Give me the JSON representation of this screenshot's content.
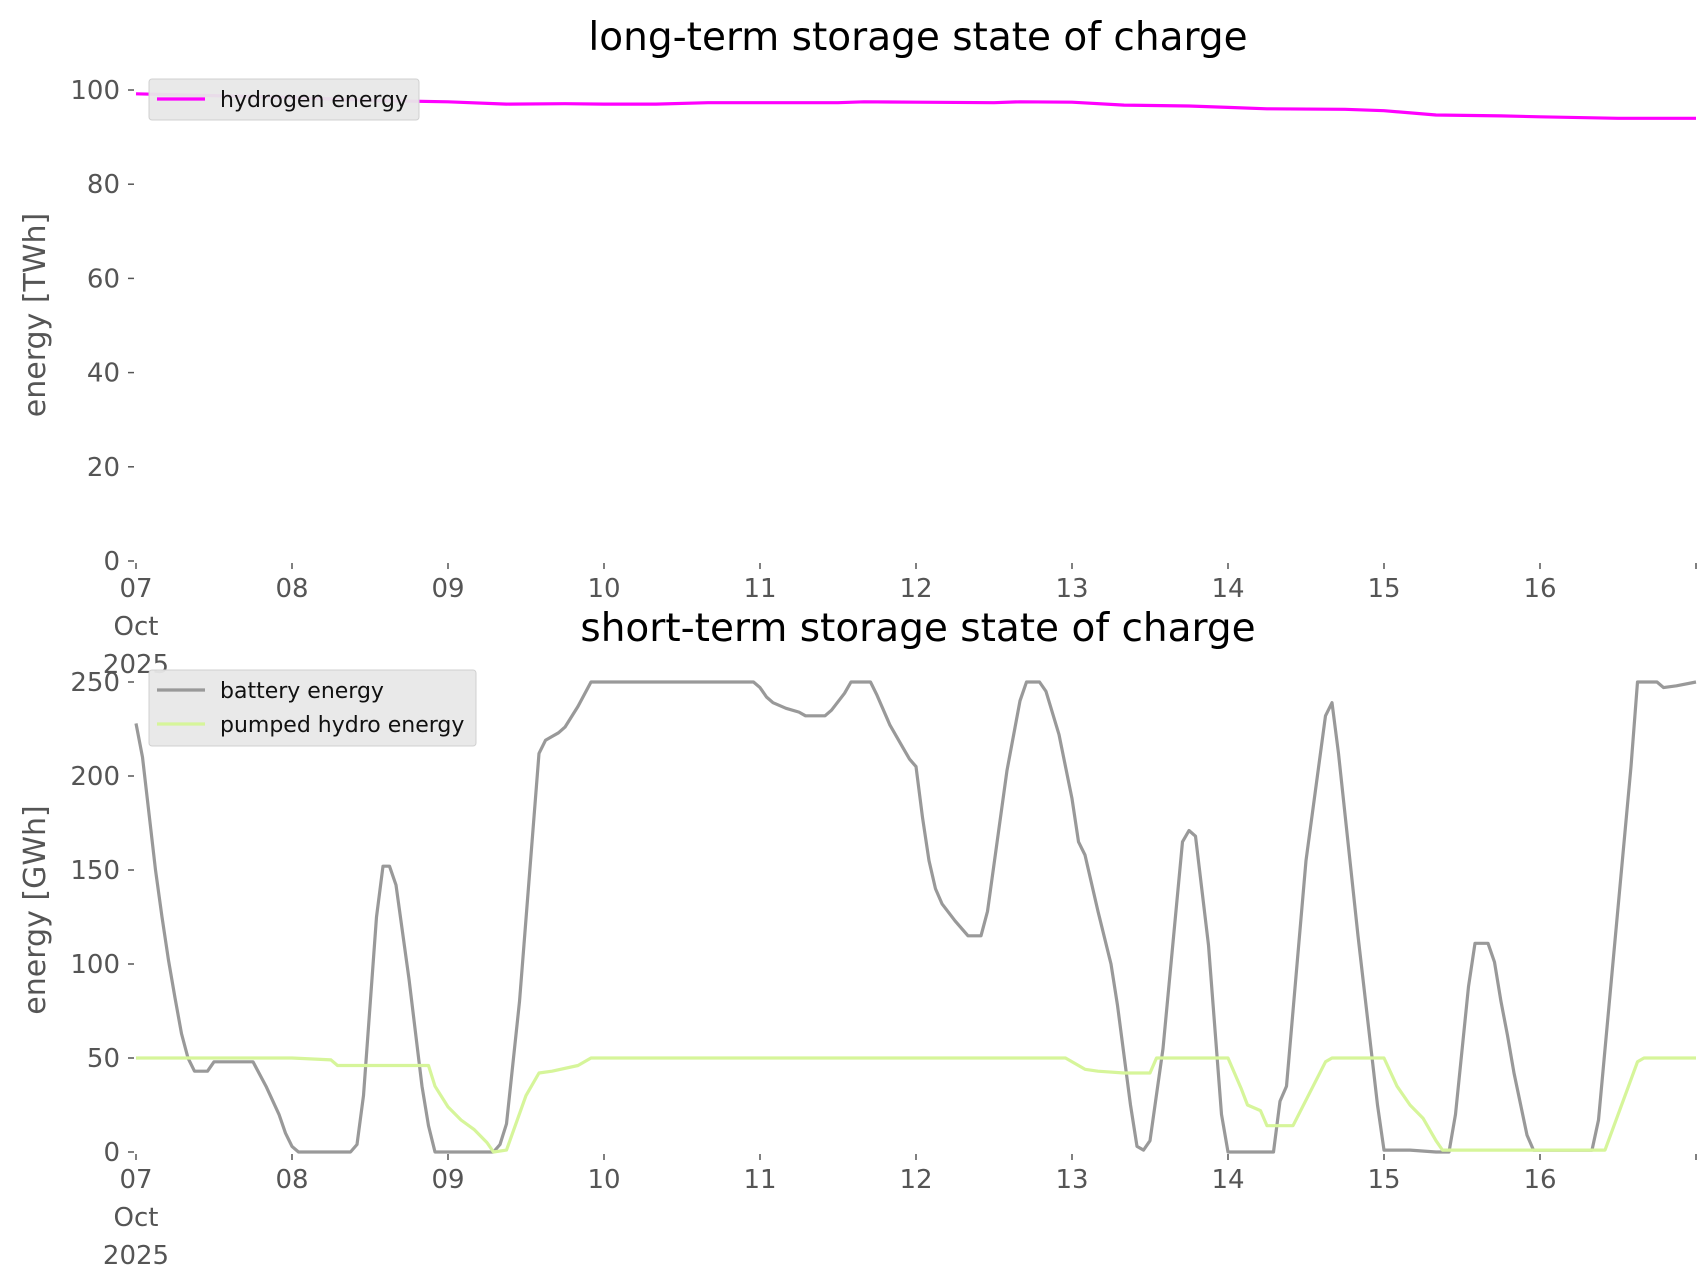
{
  "chart_data": [
    {
      "type": "line",
      "title": "long-term storage state of charge",
      "xlabel": "",
      "ylabel": "energy [TWh]",
      "ylim": [
        0,
        100
      ],
      "yticks": [
        "0",
        "20",
        "40",
        "60",
        "80",
        "100"
      ],
      "xticks": [
        {
          "date": "2025-10-07",
          "label": [
            "07",
            "Oct",
            "2025"
          ]
        },
        {
          "date": "2025-10-08",
          "label": [
            "08"
          ]
        },
        {
          "date": "2025-10-09",
          "label": [
            "09"
          ]
        },
        {
          "date": "2025-10-10",
          "label": [
            "10"
          ]
        },
        {
          "date": "2025-10-11",
          "label": [
            "11"
          ]
        },
        {
          "date": "2025-10-12",
          "label": [
            "12"
          ]
        },
        {
          "date": "2025-10-13",
          "label": [
            "13"
          ]
        },
        {
          "date": "2025-10-14",
          "label": [
            "14"
          ]
        },
        {
          "date": "2025-10-15",
          "label": [
            "15"
          ]
        },
        {
          "date": "2025-10-16",
          "label": [
            "16"
          ]
        }
      ],
      "xlim": [
        "2025-10-07T00:00",
        "2025-10-17T00:00"
      ],
      "grid": false,
      "legend_loc": "upper left",
      "series": [
        {
          "name": "hydrogen energy",
          "color": "#ff00ff",
          "points": [
            [
              "2025-10-07T00:00",
              99.2
            ],
            [
              "2025-10-08T00:00",
              98.4
            ],
            [
              "2025-10-08T12:00",
              97.8
            ],
            [
              "2025-10-09T00:00",
              97.5
            ],
            [
              "2025-10-09T09:00",
              97.0
            ],
            [
              "2025-10-09T18:00",
              97.1
            ],
            [
              "2025-10-10T00:00",
              97.0
            ],
            [
              "2025-10-10T08:00",
              97.0
            ],
            [
              "2025-10-10T16:00",
              97.3
            ],
            [
              "2025-10-11T00:00",
              97.3
            ],
            [
              "2025-10-11T12:00",
              97.3
            ],
            [
              "2025-10-11T16:00",
              97.5
            ],
            [
              "2025-10-12T00:00",
              97.4
            ],
            [
              "2025-10-12T12:00",
              97.3
            ],
            [
              "2025-10-12T16:00",
              97.5
            ],
            [
              "2025-10-13T00:00",
              97.4
            ],
            [
              "2025-10-13T08:00",
              96.8
            ],
            [
              "2025-10-13T18:00",
              96.6
            ],
            [
              "2025-10-14T00:00",
              96.3
            ],
            [
              "2025-10-14T06:00",
              96.0
            ],
            [
              "2025-10-14T18:00",
              95.9
            ],
            [
              "2025-10-15T00:00",
              95.6
            ],
            [
              "2025-10-15T08:00",
              94.7
            ],
            [
              "2025-10-15T18:00",
              94.5
            ],
            [
              "2025-10-16T00:00",
              94.3
            ],
            [
              "2025-10-16T12:00",
              94.0
            ],
            [
              "2025-10-17T00:00",
              94.0
            ]
          ]
        }
      ]
    },
    {
      "type": "line",
      "title": "short-term storage state of charge",
      "xlabel": "",
      "ylabel": "energy [GWh]",
      "ylim": [
        0,
        250
      ],
      "yticks": [
        "0",
        "50",
        "100",
        "150",
        "200",
        "250"
      ],
      "xticks": [
        {
          "date": "2025-10-07",
          "label": [
            "07",
            "Oct",
            "2025"
          ]
        },
        {
          "date": "2025-10-08",
          "label": [
            "08"
          ]
        },
        {
          "date": "2025-10-09",
          "label": [
            "09"
          ]
        },
        {
          "date": "2025-10-10",
          "label": [
            "10"
          ]
        },
        {
          "date": "2025-10-11",
          "label": [
            "11"
          ]
        },
        {
          "date": "2025-10-12",
          "label": [
            "12"
          ]
        },
        {
          "date": "2025-10-13",
          "label": [
            "13"
          ]
        },
        {
          "date": "2025-10-14",
          "label": [
            "14"
          ]
        },
        {
          "date": "2025-10-15",
          "label": [
            "15"
          ]
        },
        {
          "date": "2025-10-16",
          "label": [
            "16"
          ]
        }
      ],
      "xlim": [
        "2025-10-07T00:00",
        "2025-10-17T00:00"
      ],
      "grid": false,
      "legend_loc": "upper left",
      "series": [
        {
          "name": "battery energy",
          "color": "#999999",
          "points": [
            [
              "2025-10-07T00:00",
              228
            ],
            [
              "2025-10-07T01:00",
              210
            ],
            [
              "2025-10-07T02:00",
              180
            ],
            [
              "2025-10-07T03:00",
              150
            ],
            [
              "2025-10-07T04:00",
              125
            ],
            [
              "2025-10-07T05:00",
              102
            ],
            [
              "2025-10-07T06:00",
              82
            ],
            [
              "2025-10-07T07:00",
              63
            ],
            [
              "2025-10-07T08:00",
              50
            ],
            [
              "2025-10-07T09:00",
              43
            ],
            [
              "2025-10-07T11:00",
              43
            ],
            [
              "2025-10-07T12:00",
              48
            ],
            [
              "2025-10-07T18:00",
              48
            ],
            [
              "2025-10-07T20:00",
              35
            ],
            [
              "2025-10-07T22:00",
              20
            ],
            [
              "2025-10-07T23:00",
              10
            ],
            [
              "2025-10-08T00:00",
              3
            ],
            [
              "2025-10-08T01:00",
              0
            ],
            [
              "2025-10-08T09:00",
              0
            ],
            [
              "2025-10-08T10:00",
              4
            ],
            [
              "2025-10-08T11:00",
              30
            ],
            [
              "2025-10-08T13:00",
              125
            ],
            [
              "2025-10-08T14:00",
              152
            ],
            [
              "2025-10-08T15:00",
              152
            ],
            [
              "2025-10-08T16:00",
              142
            ],
            [
              "2025-10-08T18:00",
              92
            ],
            [
              "2025-10-08T20:00",
              35
            ],
            [
              "2025-10-08T21:00",
              14
            ],
            [
              "2025-10-08T22:00",
              0
            ],
            [
              "2025-10-09T07:00",
              0
            ],
            [
              "2025-10-09T08:00",
              4
            ],
            [
              "2025-10-09T09:00",
              15
            ],
            [
              "2025-10-09T11:00",
              80
            ],
            [
              "2025-10-09T14:00",
              212
            ],
            [
              "2025-10-09T15:00",
              219
            ],
            [
              "2025-10-09T16:00",
              221
            ],
            [
              "2025-10-09T17:00",
              223
            ],
            [
              "2025-10-09T18:00",
              226
            ],
            [
              "2025-10-09T20:00",
              237
            ],
            [
              "2025-10-09T22:00",
              250
            ],
            [
              "2025-10-10T23:00",
              250
            ],
            [
              "2025-10-11T00:00",
              247
            ],
            [
              "2025-10-11T01:00",
              242
            ],
            [
              "2025-10-11T02:00",
              239
            ],
            [
              "2025-10-11T04:00",
              236
            ],
            [
              "2025-10-11T06:00",
              234
            ],
            [
              "2025-10-11T07:00",
              232
            ],
            [
              "2025-10-11T10:00",
              232
            ],
            [
              "2025-10-11T11:00",
              235
            ],
            [
              "2025-10-11T13:00",
              244
            ],
            [
              "2025-10-11T14:00",
              250
            ],
            [
              "2025-10-11T17:00",
              250
            ],
            [
              "2025-10-11T18:00",
              243
            ],
            [
              "2025-10-11T20:00",
              227
            ],
            [
              "2025-10-11T22:00",
              215
            ],
            [
              "2025-10-11T23:00",
              209
            ],
            [
              "2025-10-12T00:00",
              205
            ],
            [
              "2025-10-12T01:00",
              178
            ],
            [
              "2025-10-12T02:00",
              155
            ],
            [
              "2025-10-12T03:00",
              140
            ],
            [
              "2025-10-12T04:00",
              132
            ],
            [
              "2025-10-12T06:00",
              123
            ],
            [
              "2025-10-12T08:00",
              115
            ],
            [
              "2025-10-12T10:00",
              115
            ],
            [
              "2025-10-12T11:00",
              128
            ],
            [
              "2025-10-12T14:00",
              203
            ],
            [
              "2025-10-12T16:00",
              240
            ],
            [
              "2025-10-12T17:00",
              250
            ],
            [
              "2025-10-12T19:00",
              250
            ],
            [
              "2025-10-12T20:00",
              245
            ],
            [
              "2025-10-12T22:00",
              222
            ],
            [
              "2025-10-13T00:00",
              188
            ],
            [
              "2025-10-13T01:00",
              165
            ],
            [
              "2025-10-13T02:00",
              158
            ],
            [
              "2025-10-13T04:00",
              128
            ],
            [
              "2025-10-13T06:00",
              100
            ],
            [
              "2025-10-13T07:00",
              78
            ],
            [
              "2025-10-13T09:00",
              25
            ],
            [
              "2025-10-13T10:00",
              3
            ],
            [
              "2025-10-13T11:00",
              1
            ],
            [
              "2025-10-13T12:00",
              6
            ],
            [
              "2025-10-13T14:00",
              55
            ],
            [
              "2025-10-13T17:00",
              165
            ],
            [
              "2025-10-13T18:00",
              171
            ],
            [
              "2025-10-13T19:00",
              168
            ],
            [
              "2025-10-13T21:00",
              110
            ],
            [
              "2025-10-13T23:00",
              20
            ],
            [
              "2025-10-14T00:00",
              0
            ],
            [
              "2025-10-14T07:00",
              0
            ],
            [
              "2025-10-14T08:00",
              27
            ],
            [
              "2025-10-14T09:00",
              35
            ],
            [
              "2025-10-14T12:00",
              155
            ],
            [
              "2025-10-14T15:00",
              232
            ],
            [
              "2025-10-14T16:00",
              239
            ],
            [
              "2025-10-14T17:00",
              212
            ],
            [
              "2025-10-14T20:00",
              115
            ],
            [
              "2025-10-14T23:00",
              25
            ],
            [
              "2025-10-15T00:00",
              1
            ],
            [
              "2025-10-15T04:00",
              1
            ],
            [
              "2025-10-15T08:00",
              0
            ],
            [
              "2025-10-15T10:00",
              0
            ],
            [
              "2025-10-15T11:00",
              20
            ],
            [
              "2025-10-15T13:00",
              88
            ],
            [
              "2025-10-15T14:00",
              111
            ],
            [
              "2025-10-15T16:00",
              111
            ],
            [
              "2025-10-15T17:00",
              101
            ],
            [
              "2025-10-15T18:00",
              80
            ],
            [
              "2025-10-15T19:00",
              62
            ],
            [
              "2025-10-15T20:00",
              42
            ],
            [
              "2025-10-15T22:00",
              9
            ],
            [
              "2025-10-15T23:00",
              1
            ],
            [
              "2025-10-16T08:00",
              1
            ],
            [
              "2025-10-16T09:00",
              17
            ],
            [
              "2025-10-16T14:00",
              205
            ],
            [
              "2025-10-16T15:00",
              250
            ],
            [
              "2025-10-16T18:00",
              250
            ],
            [
              "2025-10-16T19:00",
              247
            ],
            [
              "2025-10-16T21:00",
              248
            ],
            [
              "2025-10-17T00:00",
              250
            ]
          ]
        },
        {
          "name": "pumped hydro energy",
          "color": "#d6f59a",
          "points": [
            [
              "2025-10-07T00:00",
              50
            ],
            [
              "2025-10-08T00:00",
              50
            ],
            [
              "2025-10-08T06:00",
              49
            ],
            [
              "2025-10-08T07:00",
              46
            ],
            [
              "2025-10-08T20:00",
              46
            ],
            [
              "2025-10-08T21:00",
              46
            ],
            [
              "2025-10-08T22:00",
              35
            ],
            [
              "2025-10-09T00:00",
              24
            ],
            [
              "2025-10-09T02:00",
              17
            ],
            [
              "2025-10-09T04:00",
              12
            ],
            [
              "2025-10-09T06:00",
              5
            ],
            [
              "2025-10-09T07:00",
              0
            ],
            [
              "2025-10-09T09:00",
              1
            ],
            [
              "2025-10-09T12:00",
              30
            ],
            [
              "2025-10-09T14:00",
              42
            ],
            [
              "2025-10-09T16:00",
              43
            ],
            [
              "2025-10-09T20:00",
              46
            ],
            [
              "2025-10-09T22:00",
              50
            ],
            [
              "2025-10-12T23:00",
              50
            ],
            [
              "2025-10-13T00:00",
              48
            ],
            [
              "2025-10-13T02:00",
              44
            ],
            [
              "2025-10-13T04:00",
              43
            ],
            [
              "2025-10-13T08:00",
              42
            ],
            [
              "2025-10-13T10:00",
              42
            ],
            [
              "2025-10-13T12:00",
              42
            ],
            [
              "2025-10-13T13:00",
              50
            ],
            [
              "2025-10-14T00:00",
              50
            ],
            [
              "2025-10-14T02:00",
              34
            ],
            [
              "2025-10-14T03:00",
              25
            ],
            [
              "2025-10-14T05:00",
              22
            ],
            [
              "2025-10-14T06:00",
              14
            ],
            [
              "2025-10-14T10:00",
              14
            ],
            [
              "2025-10-14T15:00",
              48
            ],
            [
              "2025-10-14T16:00",
              50
            ],
            [
              "2025-10-15T00:00",
              50
            ],
            [
              "2025-10-15T02:00",
              35
            ],
            [
              "2025-10-15T04:00",
              25
            ],
            [
              "2025-10-15T06:00",
              18
            ],
            [
              "2025-10-15T08:00",
              6
            ],
            [
              "2025-10-15T09:00",
              1
            ],
            [
              "2025-10-16T10:00",
              1
            ],
            [
              "2025-10-16T15:00",
              48
            ],
            [
              "2025-10-16T16:00",
              50
            ],
            [
              "2025-10-17T00:00",
              50
            ]
          ]
        }
      ]
    }
  ]
}
